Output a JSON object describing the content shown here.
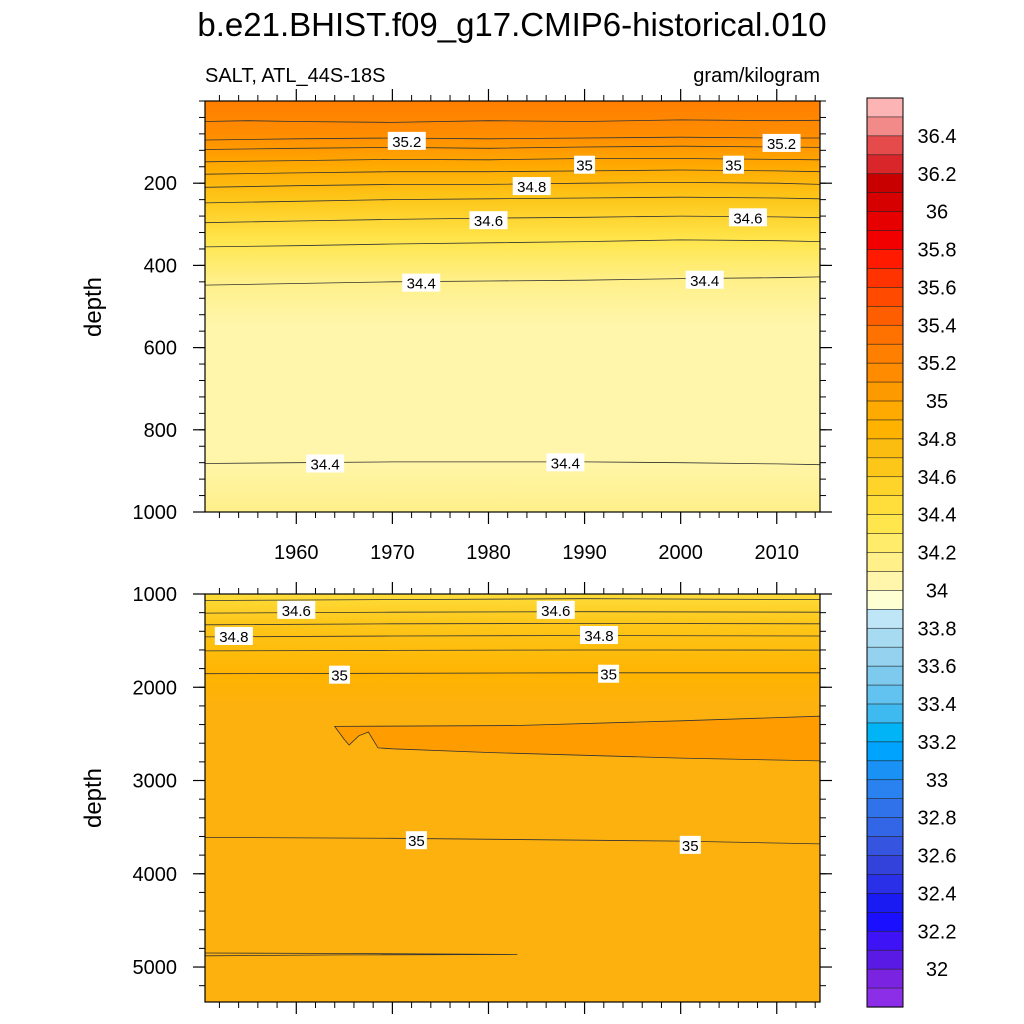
{
  "chart_data": {
    "type": "heatmap",
    "title": "b.e21.BHIST.f09_g17.CMIP6-historical.010",
    "left_string": "SALT, ATL_44S-18S",
    "right_string": "gram/kilogram",
    "x": {
      "label": "",
      "range": [
        1950.5,
        2014.5
      ],
      "major_ticks": [
        1960,
        1970,
        1980,
        1990,
        2000,
        2010
      ],
      "tick_labels": [
        "1960",
        "1970",
        "1980",
        "1990",
        "2000",
        "2010"
      ]
    },
    "panels": [
      {
        "name": "upper",
        "ylabel": "depth",
        "ylim": [
          0,
          1000
        ],
        "y_reversed": true,
        "y_ticks": [
          200,
          400,
          600,
          800,
          1000
        ],
        "y_tick_labels": [
          "200",
          "400",
          "600",
          "800",
          "1000"
        ],
        "contours": [
          {
            "level": 35.3,
            "points": [
              [
                1950.5,
                50
              ],
              [
                1955,
                48
              ],
              [
                1960,
                50
              ],
              [
                1970,
                52
              ],
              [
                1980,
                48
              ],
              [
                1990,
                50
              ],
              [
                2000,
                46
              ],
              [
                2010,
                48
              ],
              [
                2014.5,
                47
              ]
            ]
          },
          {
            "level": 35.2,
            "points": [
              [
                1950.5,
                95
              ],
              [
                1960,
                92
              ],
              [
                1970,
                90
              ],
              [
                1980,
                92
              ],
              [
                1990,
                90
              ],
              [
                2000,
                88
              ],
              [
                2010,
                90
              ],
              [
                2014.5,
                90
              ]
            ]
          },
          {
            "level": 35.1,
            "points": [
              [
                1950.5,
                118
              ],
              [
                1960,
                115
              ],
              [
                1970,
                113
              ],
              [
                1980,
                115
              ],
              [
                1990,
                112
              ],
              [
                2000,
                110
              ],
              [
                2010,
                112
              ],
              [
                2014.5,
                113
              ]
            ]
          },
          {
            "level": 35.0,
            "points": [
              [
                1950.5,
                148
              ],
              [
                1960,
                145
              ],
              [
                1970,
                142
              ],
              [
                1980,
                143
              ],
              [
                1990,
                140
              ],
              [
                2000,
                140
              ],
              [
                2010,
                142
              ],
              [
                2014.5,
                143
              ]
            ]
          },
          {
            "level": 34.9,
            "points": [
              [
                1950.5,
                178
              ],
              [
                1960,
                175
              ],
              [
                1970,
                172
              ],
              [
                1980,
                172
              ],
              [
                1990,
                170
              ],
              [
                2000,
                168
              ],
              [
                2010,
                170
              ],
              [
                2014.5,
                172
              ]
            ]
          },
          {
            "level": 34.8,
            "points": [
              [
                1950.5,
                210
              ],
              [
                1960,
                206
              ],
              [
                1970,
                203
              ],
              [
                1980,
                203
              ],
              [
                1990,
                200
              ],
              [
                2000,
                198
              ],
              [
                2010,
                200
              ],
              [
                2014.5,
                203
              ]
            ]
          },
          {
            "level": 34.7,
            "points": [
              [
                1950.5,
                248
              ],
              [
                1960,
                244
              ],
              [
                1970,
                240
              ],
              [
                1980,
                238
              ],
              [
                1990,
                236
              ],
              [
                2000,
                234
              ],
              [
                2010,
                236
              ],
              [
                2014.5,
                238
              ]
            ]
          },
          {
            "level": 34.6,
            "points": [
              [
                1950.5,
                296
              ],
              [
                1960,
                292
              ],
              [
                1970,
                288
              ],
              [
                1980,
                285
              ],
              [
                1990,
                283
              ],
              [
                2000,
                280
              ],
              [
                2010,
                282
              ],
              [
                2014.5,
                284
              ]
            ]
          },
          {
            "level": 34.5,
            "points": [
              [
                1950.5,
                355
              ],
              [
                1960,
                352
              ],
              [
                1970,
                348
              ],
              [
                1980,
                345
              ],
              [
                1990,
                342
              ],
              [
                2000,
                338
              ],
              [
                2010,
                340
              ],
              [
                2014.5,
                342
              ]
            ]
          },
          {
            "level": 34.4,
            "points": [
              [
                1950.5,
                448
              ],
              [
                1960,
                444
              ],
              [
                1970,
                440
              ],
              [
                1980,
                438
              ],
              [
                1990,
                436
              ],
              [
                2000,
                432
              ],
              [
                2010,
                430
              ],
              [
                2014.5,
                428
              ]
            ]
          },
          {
            "level": 34.4,
            "points": [
              [
                1950.5,
                882
              ],
              [
                1960,
                880
              ],
              [
                1970,
                878
              ],
              [
                1980,
                878
              ],
              [
                1990,
                878
              ],
              [
                2000,
                880
              ],
              [
                2010,
                883
              ],
              [
                2014.5,
                885
              ]
            ]
          }
        ],
        "contour_labels": [
          {
            "text": "35.2",
            "x": 1971.5,
            "y": 97
          },
          {
            "text": "35.2",
            "x": 2010.5,
            "y": 102
          },
          {
            "text": "35",
            "x": 1889.0,
            "y": 0,
            "skip": true
          },
          {
            "text": "35",
            "x": 1990.0,
            "y": 155
          },
          {
            "text": "35",
            "x": 2005.5,
            "y": 155
          },
          {
            "text": "34.8",
            "x": 1984.5,
            "y": 207
          },
          {
            "text": "34.6",
            "x": 1980.0,
            "y": 290
          },
          {
            "text": "34.6",
            "x": 2007.0,
            "y": 283
          },
          {
            "text": "34.4",
            "x": 1973.0,
            "y": 442
          },
          {
            "text": "34.4",
            "x": 2002.5,
            "y": 435
          },
          {
            "text": "34.4",
            "x": 1963.0,
            "y": 882
          },
          {
            "text": "34.4",
            "x": 1988.0,
            "y": 879
          }
        ]
      },
      {
        "name": "lower",
        "ylabel": "depth",
        "ylim": [
          1000,
          5375
        ],
        "y_reversed": true,
        "y_ticks": [
          1000,
          2000,
          3000,
          4000,
          5000
        ],
        "y_tick_labels": [
          "1000",
          "2000",
          "3000",
          "4000",
          "5000"
        ],
        "contours": [
          {
            "level": 34.5,
            "points": [
              [
                1950.5,
                1070
              ],
              [
                1970,
                1060
              ],
              [
                1990,
                1050
              ],
              [
                2014.5,
                1060
              ]
            ]
          },
          {
            "level": 34.6,
            "points": [
              [
                1950.5,
                1205
              ],
              [
                1970,
                1195
              ],
              [
                1990,
                1190
              ],
              [
                2014.5,
                1195
              ]
            ]
          },
          {
            "level": 34.7,
            "points": [
              [
                1950.5,
                1330
              ],
              [
                1970,
                1320
              ],
              [
                1990,
                1315
              ],
              [
                2014.5,
                1320
              ]
            ]
          },
          {
            "level": 34.8,
            "points": [
              [
                1950.5,
                1460
              ],
              [
                1970,
                1450
              ],
              [
                1990,
                1445
              ],
              [
                2014.5,
                1450
              ]
            ]
          },
          {
            "level": 34.9,
            "points": [
              [
                1950.5,
                1610
              ],
              [
                1970,
                1605
              ],
              [
                1990,
                1600
              ],
              [
                2014.5,
                1602
              ]
            ]
          },
          {
            "level": 35.0,
            "points": [
              [
                1950.5,
                1855
              ],
              [
                1970,
                1850
              ],
              [
                1990,
                1845
              ],
              [
                2014.5,
                1845
              ]
            ]
          },
          {
            "level": 35.0,
            "points": [
              [
                1950.5,
                3610
              ],
              [
                1970,
                3620
              ],
              [
                1990,
                3640
              ],
              [
                2000,
                3650
              ],
              [
                2014.5,
                3680
              ]
            ]
          },
          {
            "level": 35.0,
            "points": [
              [
                1950.5,
                4850
              ],
              [
                1965,
                4855
              ],
              [
                1983,
                4865
              ],
              [
                1965,
                4870
              ],
              [
                1950.5,
                4880
              ]
            ]
          }
        ],
        "closed_region": {
          "level": 35.1,
          "points": [
            [
              1964,
              2420
            ],
            [
              1983,
              2410
            ],
            [
              2000,
              2360
            ],
            [
              2014.5,
              2310
            ],
            [
              2014.5,
              2790
            ],
            [
              2000,
              2760
            ],
            [
              1980,
              2700
            ],
            [
              1970,
              2660
            ],
            [
              1968.5,
              2650
            ],
            [
              1967.5,
              2480
            ],
            [
              1966.5,
              2520
            ],
            [
              1965.5,
              2620
            ],
            [
              1965,
              2560
            ],
            [
              1964,
              2420
            ]
          ]
        },
        "contour_labels": [
          {
            "text": "34.6",
            "x": 1960.0,
            "y": 1170
          },
          {
            "text": "34.6",
            "x": 1987.0,
            "y": 1170
          },
          {
            "text": "34.8",
            "x": 1953.5,
            "y": 1450
          },
          {
            "text": "34.8",
            "x": 1991.5,
            "y": 1440
          },
          {
            "text": "35",
            "x": 1964.5,
            "y": 1865
          },
          {
            "text": "35",
            "x": 1992.5,
            "y": 1855
          },
          {
            "text": "35",
            "x": 1972.5,
            "y": 3640
          },
          {
            "text": "35",
            "x": 2001.0,
            "y": 3690
          }
        ]
      }
    ],
    "colorbar": {
      "labels": [
        "36.4",
        "36.2",
        "36",
        "35.8",
        "35.6",
        "35.4",
        "35.2",
        "35",
        "34.8",
        "34.6",
        "34.4",
        "34.2",
        "34",
        "33.8",
        "33.6",
        "33.4",
        "33.2",
        "33",
        "32.8",
        "32.6",
        "32.4",
        "32.2",
        "32"
      ],
      "colors_top_to_bottom": [
        "#fdb4b4",
        "#f28a8a",
        "#e64b4b",
        "#d8262a",
        "#c80000",
        "#d60000",
        "#e60000",
        "#f20000",
        "#ff1a00",
        "#ff3300",
        "#ff4a00",
        "#ff5e00",
        "#ff7200",
        "#ff7f00",
        "#ff8c00",
        "#fc9a00",
        "#ffaa00",
        "#ffb300",
        "#fbbd10",
        "#fdc71a",
        "#ffd42a",
        "#ffdd3a",
        "#ffe64d",
        "#ffec6a",
        "#fff08a",
        "#fff6ac",
        "#ffffd4",
        "#bfe6f6",
        "#a6dbf2",
        "#94d2f0",
        "#7ecaee",
        "#62c3f0",
        "#3fbaf0",
        "#00b4f6",
        "#00a4ff",
        "#1991f5",
        "#2a82f0",
        "#2f72ea",
        "#3366e6",
        "#3554e0",
        "#3442dc",
        "#2a30e8",
        "#1a1af2",
        "#1a0fff",
        "#3e14f6",
        "#5a1ae6",
        "#7a24e2",
        "#8c2ee8"
      ]
    },
    "fill_colors": {
      "upper_top": "#ff7f00",
      "upper_mid": "#fff6ac",
      "lower_top": "#ffdd3a",
      "lower_main": "#fdb10f",
      "lower_core": "#ff9c00"
    }
  }
}
